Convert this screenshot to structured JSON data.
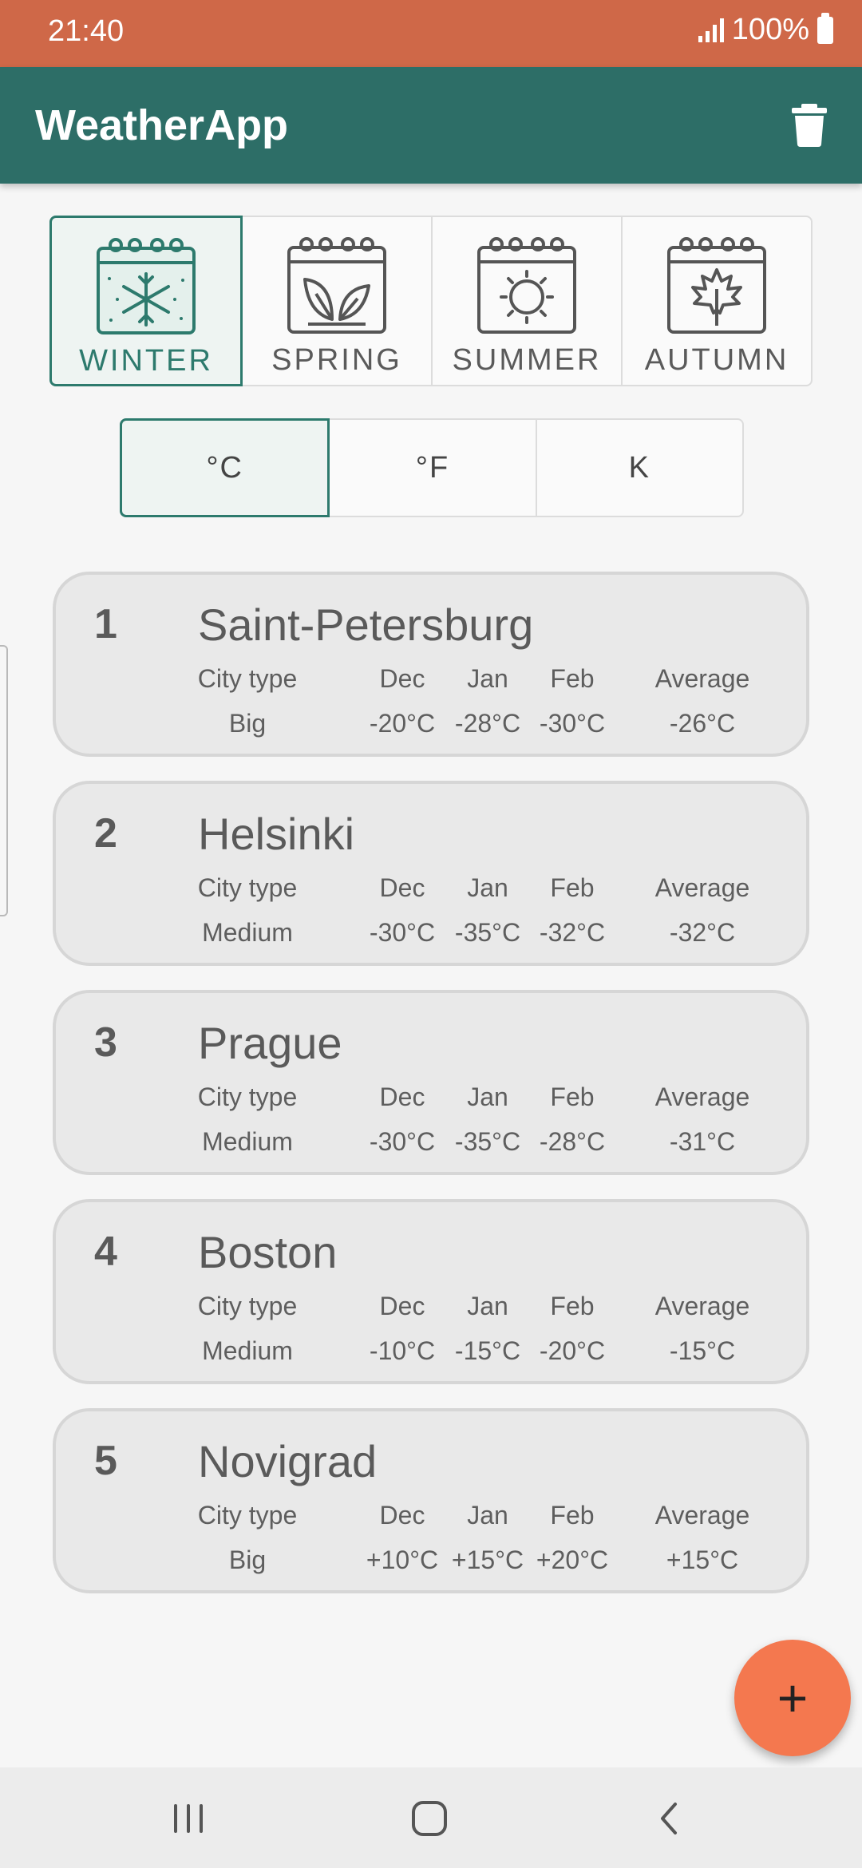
{
  "status_bar": {
    "time": "21:40",
    "battery": "100%"
  },
  "app_bar": {
    "title": "WeatherApp",
    "action_icon": "trash-icon"
  },
  "seasons": [
    {
      "label": "WINTER",
      "icon": "calendar-snowflake-icon",
      "selected": true
    },
    {
      "label": "SPRING",
      "icon": "calendar-leaves-icon",
      "selected": false
    },
    {
      "label": "SUMMER",
      "icon": "calendar-sun-icon",
      "selected": false
    },
    {
      "label": "AUTUMN",
      "icon": "calendar-maple-leaf-icon",
      "selected": false
    }
  ],
  "units": [
    {
      "label": "°C",
      "selected": true
    },
    {
      "label": "°F",
      "selected": false
    },
    {
      "label": "K",
      "selected": false
    }
  ],
  "columns": {
    "city_type": "City type",
    "dec": "Dec",
    "jan": "Jan",
    "feb": "Feb",
    "average": "Average"
  },
  "cities": [
    {
      "index": "1",
      "name": "Saint-Petersburg",
      "type": "Big",
      "dec": "-20°C",
      "jan": "-28°C",
      "feb": "-30°C",
      "average": "-26°C"
    },
    {
      "index": "2",
      "name": "Helsinki",
      "type": "Medium",
      "dec": "-30°C",
      "jan": "-35°C",
      "feb": "-32°C",
      "average": "-32°C"
    },
    {
      "index": "3",
      "name": "Prague",
      "type": "Medium",
      "dec": "-30°C",
      "jan": "-35°C",
      "feb": "-28°C",
      "average": "-31°C"
    },
    {
      "index": "4",
      "name": "Boston",
      "type": "Medium",
      "dec": "-10°C",
      "jan": "-15°C",
      "feb": "-20°C",
      "average": "-15°C"
    },
    {
      "index": "5",
      "name": "Novigrad",
      "type": "Big",
      "dec": "+10°C",
      "jan": "+15°C",
      "feb": "+20°C",
      "average": "+15°C"
    }
  ],
  "fab": {
    "label": "+",
    "icon": "plus-icon"
  },
  "colors": {
    "status_bar": "#cf6848",
    "app_bar": "#2d6e67",
    "accent": "#2d7a6d",
    "fab": "#f4784f",
    "card": "#e9e9e9"
  }
}
